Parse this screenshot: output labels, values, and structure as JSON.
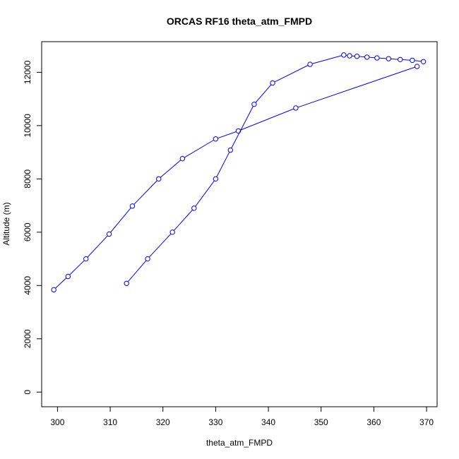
{
  "chart_data": {
    "type": "line",
    "title": "ORCAS RF16 theta_atm_FMPD",
    "xlabel": "theta_atm_FMPD",
    "ylabel": "Altitude (m)",
    "xlim": [
      297,
      372
    ],
    "ylim": [
      -550,
      13150
    ],
    "x_ticks": [
      300,
      310,
      320,
      330,
      340,
      350,
      360,
      370
    ],
    "y_ticks": [
      0,
      2000,
      4000,
      6000,
      8000,
      10000,
      12000
    ],
    "grid": false,
    "legend": "none",
    "colors": {
      "series": "#0000ff",
      "frame": "#000000",
      "background": "#ffffff"
    },
    "series": [
      {
        "marker": "open-circle",
        "points": [
          [
            313.1,
            4080
          ],
          [
            317.1,
            5000
          ],
          [
            321.8,
            6000
          ],
          [
            325.9,
            6900
          ],
          [
            330.0,
            8000
          ],
          [
            332.8,
            9080
          ],
          [
            337.3,
            10800
          ],
          [
            340.8,
            11600
          ],
          [
            347.9,
            12300
          ],
          [
            354.3,
            12650
          ],
          [
            355.4,
            12620
          ],
          [
            356.8,
            12600
          ],
          [
            358.7,
            12570
          ],
          [
            360.6,
            12540
          ],
          [
            362.8,
            12510
          ],
          [
            365.0,
            12480
          ],
          [
            367.3,
            12450
          ],
          [
            369.4,
            12400
          ]
        ]
      },
      {
        "marker": "open-circle",
        "points": [
          [
            368.2,
            12220
          ],
          [
            345.2,
            10660
          ],
          [
            334.3,
            9800
          ],
          [
            330.0,
            9500
          ],
          [
            323.7,
            8760
          ],
          [
            319.2,
            8000
          ],
          [
            314.2,
            6980
          ],
          [
            309.8,
            5930
          ],
          [
            305.4,
            5000
          ],
          [
            302.0,
            4340
          ],
          [
            299.3,
            3840
          ]
        ]
      }
    ]
  }
}
